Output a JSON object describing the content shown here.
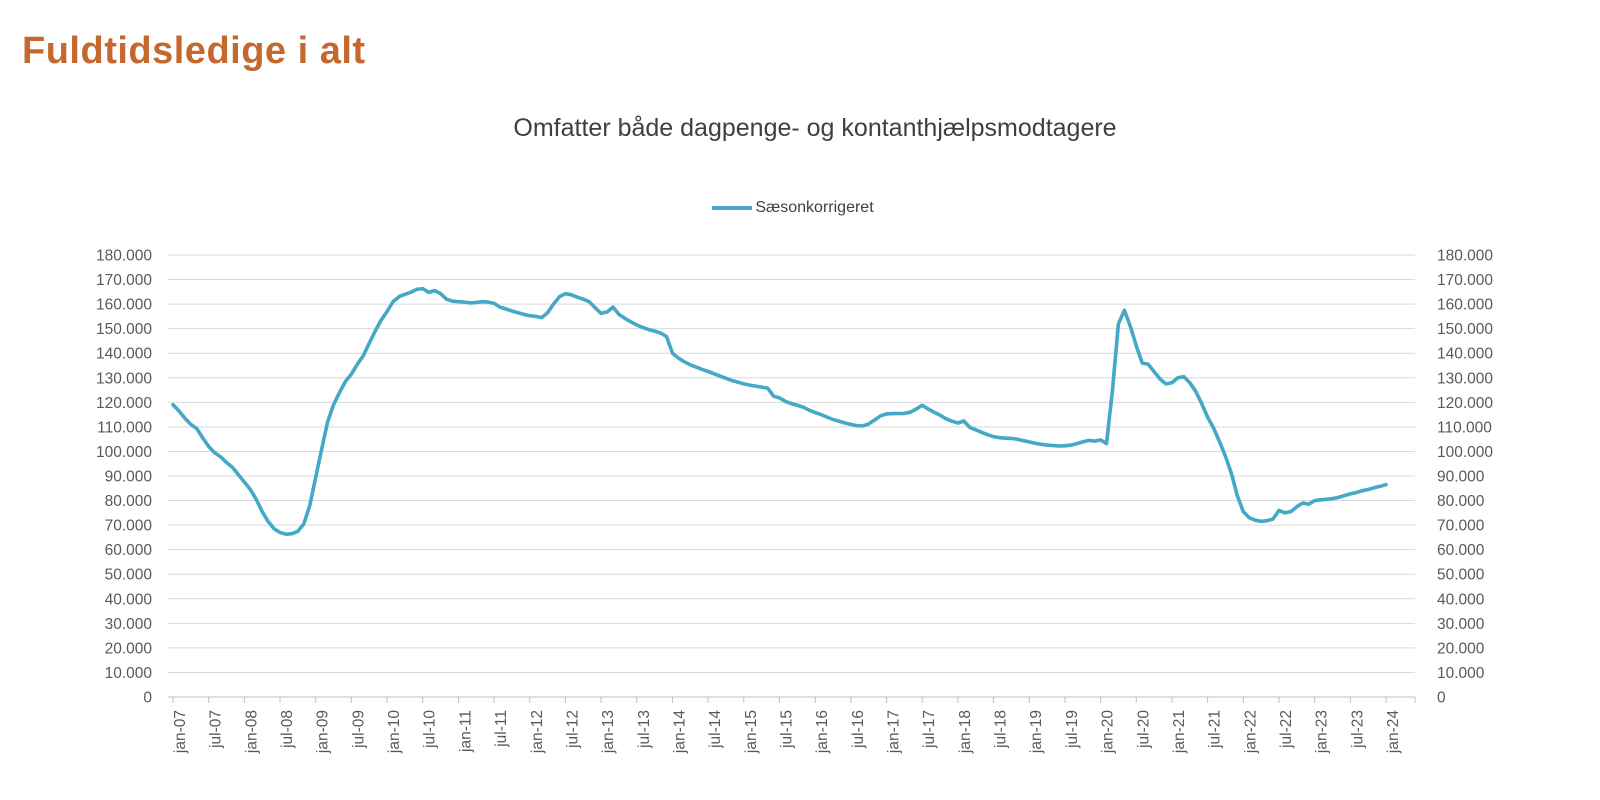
{
  "page": {
    "title": "Fuldtidsledige i alt"
  },
  "colors": {
    "title": "#C4682E",
    "series_line": "#44A8C6",
    "gridline": "#D9D9D9",
    "axis_line": "#BFBFBF",
    "axis_label": "#595959",
    "subtitle_text": "#3f3f3f"
  },
  "chart_data": {
    "type": "line",
    "title": "Omfatter både dagpenge- og kontanthjælpsmodtagere",
    "legend_position": "top-center",
    "grid": "horizontal",
    "ylim": [
      0,
      180000
    ],
    "y_tick_step": 10000,
    "y_tick_labels": [
      "0",
      "10.000",
      "20.000",
      "30.000",
      "40.000",
      "50.000",
      "60.000",
      "70.000",
      "80.000",
      "90.000",
      "100.000",
      "110.000",
      "120.000",
      "130.000",
      "140.000",
      "150.000",
      "160.000",
      "170.000",
      "180.000"
    ],
    "y_axis_both_sides": true,
    "x_monthly_start": "jan-07",
    "x_tick_interval_months": 6,
    "x_tick_labels": [
      "jan-07",
      "jul-07",
      "jan-08",
      "jul-08",
      "jan-09",
      "jul-09",
      "jan-10",
      "jul-10",
      "jan-11",
      "jul-11",
      "jan-12",
      "jul-12",
      "jan-13",
      "jul-13",
      "jan-14",
      "jul-14",
      "jan-15",
      "jul-15",
      "jan-16",
      "jul-16",
      "jan-17",
      "jul-17",
      "jan-18",
      "jul-18",
      "jan-19",
      "jul-19",
      "jan-20",
      "jul-20",
      "jan-21",
      "jul-21",
      "jan-22",
      "jul-22",
      "jan-23",
      "jul-23",
      "jan-24"
    ],
    "series": [
      {
        "name": "Sæsonkorrigeret",
        "color": "#44A8C6",
        "values": [
          119000,
          116500,
          113500,
          111000,
          109300,
          105500,
          102000,
          99500,
          97800,
          95500,
          93500,
          90500,
          87500,
          84500,
          80500,
          75500,
          71500,
          68500,
          67000,
          66300,
          66500,
          67500,
          70500,
          78000,
          89500,
          101000,
          112000,
          119000,
          124000,
          128500,
          131500,
          135500,
          139000,
          144000,
          149000,
          153500,
          157000,
          161000,
          163000,
          164000,
          164800,
          166000,
          166300,
          164800,
          165500,
          164300,
          162000,
          161200,
          161000,
          160800,
          160500,
          160700,
          161000,
          160800,
          160300,
          158800,
          158000,
          157200,
          156500,
          155800,
          155300,
          155000,
          154500,
          156500,
          160000,
          163000,
          164300,
          163800,
          162800,
          162000,
          161000,
          158500,
          156200,
          156800,
          158800,
          155800,
          154200,
          152800,
          151500,
          150500,
          149600,
          149000,
          148200,
          146800,
          140000,
          138000,
          136500,
          135300,
          134300,
          133400,
          132600,
          131600,
          130700,
          129800,
          128900,
          128200,
          127500,
          127000,
          126600,
          126200,
          125800,
          122500,
          121800,
          120400,
          119500,
          118800,
          118000,
          116800,
          115800,
          115000,
          114000,
          113000,
          112300,
          111600,
          111000,
          110500,
          110400,
          111200,
          112800,
          114500,
          115300,
          115400,
          115400,
          115500,
          116000,
          117300,
          118800,
          117300,
          116000,
          114800,
          113300,
          112300,
          111600,
          112400,
          109800,
          108800,
          107800,
          106800,
          106000,
          105600,
          105400,
          105300,
          105000,
          104400,
          103900,
          103300,
          102900,
          102600,
          102400,
          102200,
          102300,
          102600,
          103200,
          103900,
          104500,
          104200,
          104700,
          103200,
          125000,
          152000,
          157500,
          151000,
          143000,
          136000,
          135500,
          132500,
          129500,
          127500,
          128000,
          130000,
          130500,
          128000,
          124500,
          119500,
          114000,
          109500,
          104000,
          98000,
          91000,
          82000,
          75500,
          73000,
          72000,
          71500,
          71800,
          72500,
          76000,
          75000,
          75500,
          77500,
          79000,
          78500,
          80000,
          80300,
          80500,
          80800,
          81300,
          82000,
          82700,
          83300,
          84000,
          84500,
          85200,
          85800,
          86500
        ]
      }
    ]
  }
}
